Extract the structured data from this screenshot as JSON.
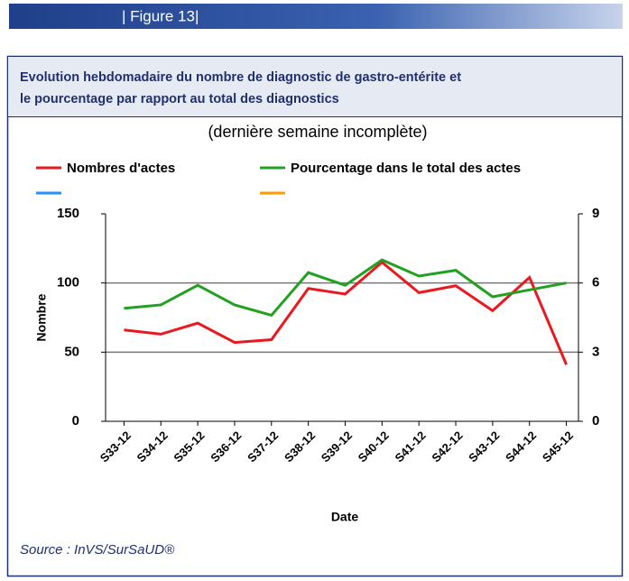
{
  "header": {
    "label": "| Figure 13|"
  },
  "chart_data": {
    "type": "line",
    "title": "Evolution hebdomadaire du nombre de diagnostic de gastro-entérite et le pourcentage par rapport au total des diagnostics",
    "subtitle": "(dernière semaine incomplète)",
    "xlabel": "Date",
    "ylabel": "Nombre",
    "categories": [
      "S33-12",
      "S34-12",
      "S35-12",
      "S36-12",
      "S37-12",
      "S38-12",
      "S39-12",
      "S40-12",
      "S41-12",
      "S42-12",
      "S43-12",
      "S44-12",
      "S45-12"
    ],
    "series": [
      {
        "name": "Nombres d'actes",
        "color": "#e8191f",
        "values": [
          66,
          63,
          71,
          57,
          59,
          96,
          92,
          115,
          93,
          98,
          80,
          104,
          41
        ]
      },
      {
        "name": "Pourcentage dans le total des actes",
        "color": "#22a020",
        "axis": "y2",
        "values": [
          4.9,
          5.05,
          5.9,
          5.05,
          4.6,
          6.45,
          5.9,
          7.0,
          6.3,
          6.55,
          5.4,
          5.7,
          6.0
        ]
      }
    ],
    "ylim": [
      0,
      150
    ],
    "yticks": [
      0,
      50,
      100,
      150
    ],
    "y2lim": [
      0,
      9
    ],
    "y2ticks": [
      0,
      3,
      6,
      9
    ],
    "grid": true
  },
  "source": "Source : InVS/SurSaUD®"
}
